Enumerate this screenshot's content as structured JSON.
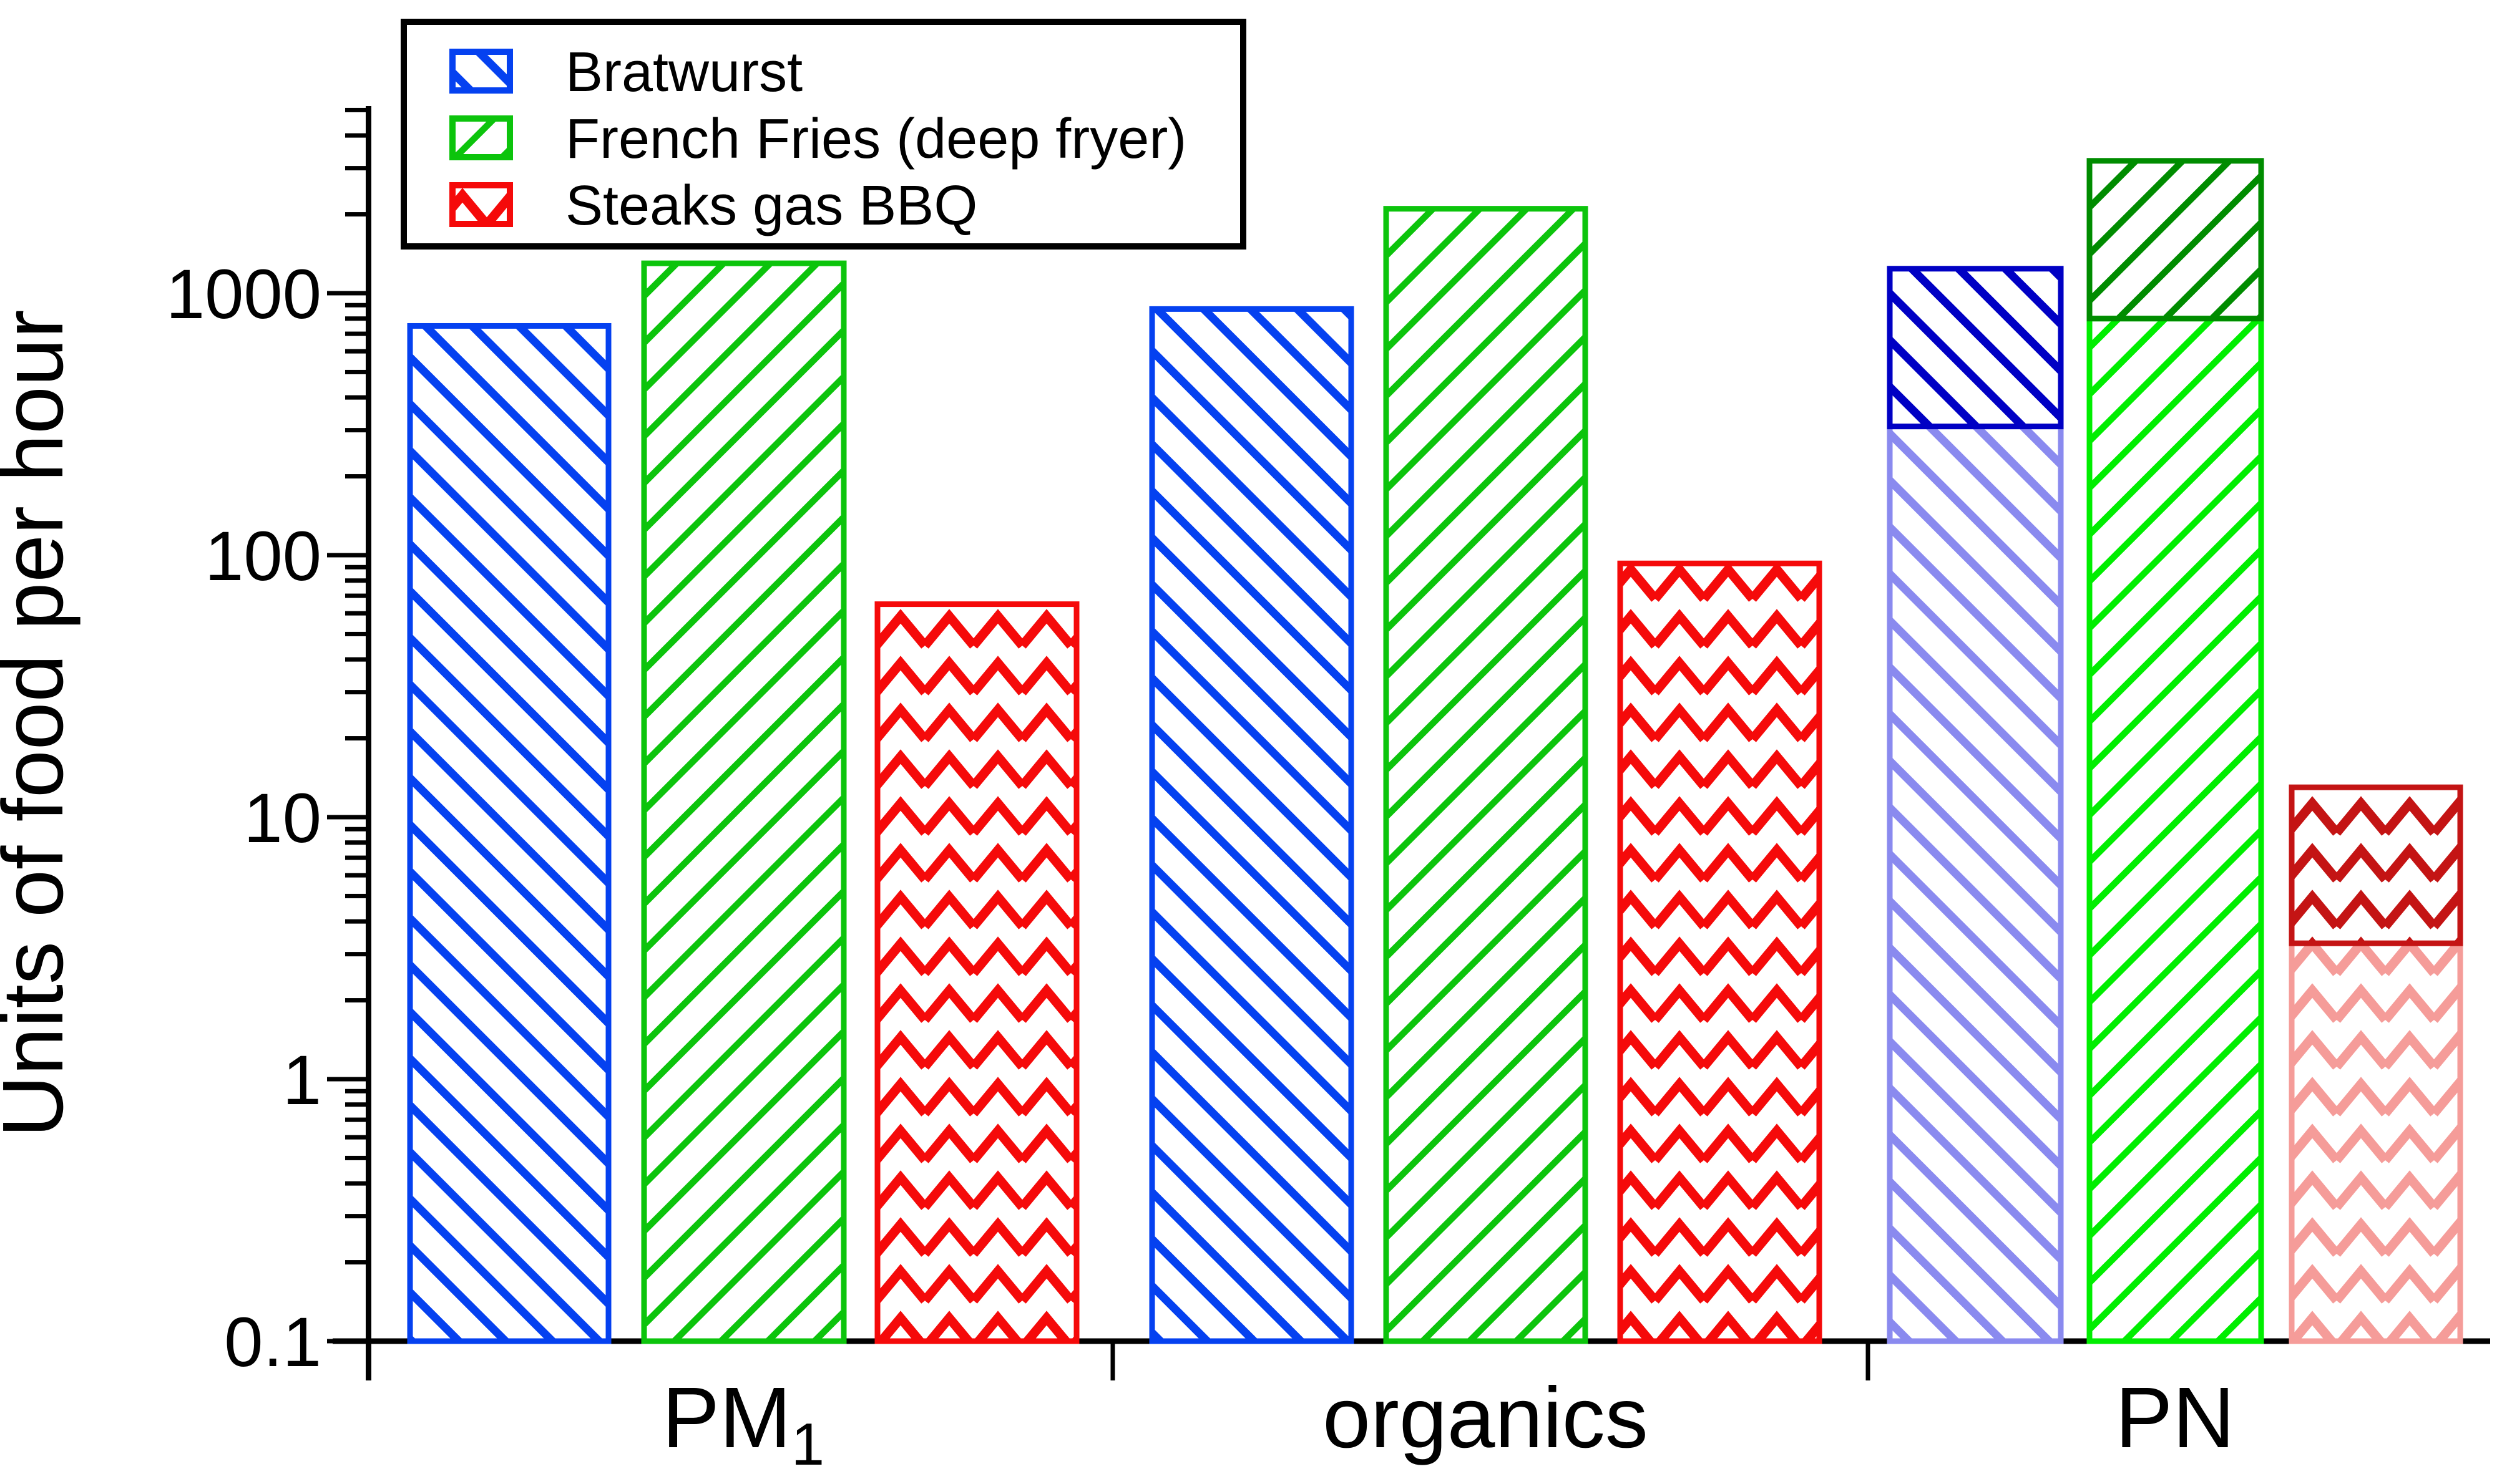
{
  "figure": {
    "ylabel": "Units of food per hour",
    "y_tick_labels": [
      "0.1",
      "1",
      "10",
      "100",
      "1000"
    ],
    "x_tick_labels": [
      "PM1",
      "organics",
      "PN"
    ],
    "x_tick_display": [
      {
        "main": "PM",
        "sub": "1"
      },
      {
        "main": "organics",
        "sub": ""
      },
      {
        "main": "PN",
        "sub": ""
      }
    ]
  },
  "legend": {
    "items": [
      {
        "label": "Bratwurst",
        "swatch_color": "#0541F0",
        "pattern": "diag-up"
      },
      {
        "label": "French Fries (deep fryer)",
        "swatch_color": "#0CC40C",
        "pattern": "diag-down"
      },
      {
        "label": "Steaks gas BBQ",
        "swatch_color": "#F50A0A",
        "pattern": "zigzag"
      }
    ]
  },
  "chart_data": {
    "type": "bar",
    "title": "",
    "xlabel": "",
    "ylabel": "Units of food per hour",
    "y_scale": "log",
    "ylim": [
      0.1,
      5000
    ],
    "yticks": [
      0.1,
      1,
      10,
      100,
      1000
    ],
    "grid": false,
    "legend_position": "top-left",
    "categories": [
      "PM1",
      "organics",
      "PN"
    ],
    "series": [
      {
        "name": "Bratwurst",
        "pattern": "diag-up",
        "colors": {
          "normal": "#0541F0",
          "light": "#8A8AEF",
          "dark": "#0000C4"
        },
        "values": [
          750,
          870,
          1240
        ],
        "segments": [
          [
            {
              "value": 750,
              "tone": "normal"
            }
          ],
          [
            {
              "value": 870,
              "tone": "normal"
            }
          ],
          [
            {
              "value": 310,
              "tone": "light"
            },
            {
              "value": 1240,
              "tone": "dark"
            }
          ]
        ]
      },
      {
        "name": "French Fries (deep fryer)",
        "pattern": "diag-down",
        "colors": {
          "normal": "#0CC40C",
          "light": "#00EE00",
          "dark": "#008C00"
        },
        "values": [
          1300,
          2100,
          3200
        ],
        "segments": [
          [
            {
              "value": 1300,
              "tone": "normal"
            }
          ],
          [
            {
              "value": 2100,
              "tone": "normal"
            }
          ],
          [
            {
              "value": 800,
              "tone": "light"
            },
            {
              "value": 3200,
              "tone": "dark"
            }
          ]
        ]
      },
      {
        "name": "Steaks gas BBQ",
        "pattern": "zigzag",
        "colors": {
          "normal": "#F50A0A",
          "light": "#F59C99",
          "dark": "#C41414"
        },
        "values": [
          65,
          93,
          13
        ],
        "segments": [
          [
            {
              "value": 65,
              "tone": "normal"
            }
          ],
          [
            {
              "value": 93,
              "tone": "normal"
            }
          ],
          [
            {
              "value": 3.3,
              "tone": "light"
            },
            {
              "value": 13,
              "tone": "dark"
            }
          ]
        ]
      }
    ]
  }
}
